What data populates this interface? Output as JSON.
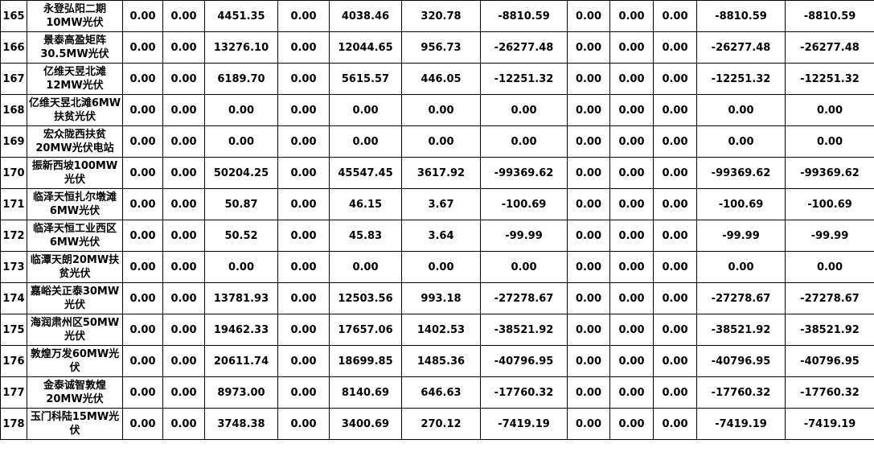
{
  "rows": [
    {
      "index": "165",
      "name": "永登弘阳二期10MW光伏",
      "values": [
        "0.00",
        "0.00",
        "4451.35",
        "0.00",
        "4038.46",
        "320.78",
        "-8810.59",
        "0.00",
        "0.00",
        "0.00",
        "-8810.59",
        "-8810.59"
      ]
    },
    {
      "index": "166",
      "name": "景泰高盈矩阵30.5MW光伏",
      "values": [
        "0.00",
        "0.00",
        "13276.10",
        "0.00",
        "12044.65",
        "956.73",
        "-26277.48",
        "0.00",
        "0.00",
        "0.00",
        "-26277.48",
        "-26277.48"
      ]
    },
    {
      "index": "167",
      "name": "亿维天昱北滩12MW光伏",
      "values": [
        "0.00",
        "0.00",
        "6189.70",
        "0.00",
        "5615.57",
        "446.05",
        "-12251.32",
        "0.00",
        "0.00",
        "0.00",
        "-12251.32",
        "-12251.32"
      ]
    },
    {
      "index": "168",
      "name": "亿维天昱北滩6MW扶贫光伏",
      "values": [
        "0.00",
        "0.00",
        "0.00",
        "0.00",
        "0.00",
        "0.00",
        "0.00",
        "0.00",
        "0.00",
        "0.00",
        "0.00",
        "0.00"
      ]
    },
    {
      "index": "169",
      "name": "宏众陇西扶贫20MW光伏电站",
      "values": [
        "0.00",
        "0.00",
        "0.00",
        "0.00",
        "0.00",
        "0.00",
        "0.00",
        "0.00",
        "0.00",
        "0.00",
        "0.00",
        "0.00"
      ]
    },
    {
      "index": "170",
      "name": "振新西坡100MW光伏",
      "values": [
        "0.00",
        "0.00",
        "50204.25",
        "0.00",
        "45547.45",
        "3617.92",
        "-99369.62",
        "0.00",
        "0.00",
        "0.00",
        "-99369.62",
        "-99369.62"
      ]
    },
    {
      "index": "171",
      "name": "临泽天恒扎尔墩滩6MW光伏",
      "values": [
        "0.00",
        "0.00",
        "50.87",
        "0.00",
        "46.15",
        "3.67",
        "-100.69",
        "0.00",
        "0.00",
        "0.00",
        "-100.69",
        "-100.69"
      ]
    },
    {
      "index": "172",
      "name": "临泽天恒工业西区6MW光伏",
      "values": [
        "0.00",
        "0.00",
        "50.52",
        "0.00",
        "45.83",
        "3.64",
        "-99.99",
        "0.00",
        "0.00",
        "0.00",
        "-99.99",
        "-99.99"
      ]
    },
    {
      "index": "173",
      "name": "临潭天朗20MW扶贫光伏",
      "values": [
        "0.00",
        "0.00",
        "0.00",
        "0.00",
        "0.00",
        "0.00",
        "0.00",
        "0.00",
        "0.00",
        "0.00",
        "0.00",
        "0.00"
      ]
    },
    {
      "index": "174",
      "name": "嘉峪关正泰30MW光伏",
      "values": [
        "0.00",
        "0.00",
        "13781.93",
        "0.00",
        "12503.56",
        "993.18",
        "-27278.67",
        "0.00",
        "0.00",
        "0.00",
        "-27278.67",
        "-27278.67"
      ]
    },
    {
      "index": "175",
      "name": "海润肃州区50MW光伏",
      "values": [
        "0.00",
        "0.00",
        "19462.33",
        "0.00",
        "17657.06",
        "1402.53",
        "-38521.92",
        "0.00",
        "0.00",
        "0.00",
        "-38521.92",
        "-38521.92"
      ]
    },
    {
      "index": "176",
      "name": "敦煌万发60MW光伏",
      "values": [
        "0.00",
        "0.00",
        "20611.74",
        "0.00",
        "18699.85",
        "1485.36",
        "-40796.95",
        "0.00",
        "0.00",
        "0.00",
        "-40796.95",
        "-40796.95"
      ]
    },
    {
      "index": "177",
      "name": "金泰诚智敦煌20MW光伏",
      "values": [
        "0.00",
        "0.00",
        "8973.00",
        "0.00",
        "8140.69",
        "646.63",
        "-17760.32",
        "0.00",
        "0.00",
        "0.00",
        "-17760.32",
        "-17760.32"
      ]
    },
    {
      "index": "178",
      "name": "玉门科陆15MW光伏",
      "values": [
        "0.00",
        "0.00",
        "3748.38",
        "0.00",
        "3400.69",
        "270.12",
        "-7419.19",
        "0.00",
        "0.00",
        "0.00",
        "-7419.19",
        "-7419.19"
      ]
    }
  ]
}
